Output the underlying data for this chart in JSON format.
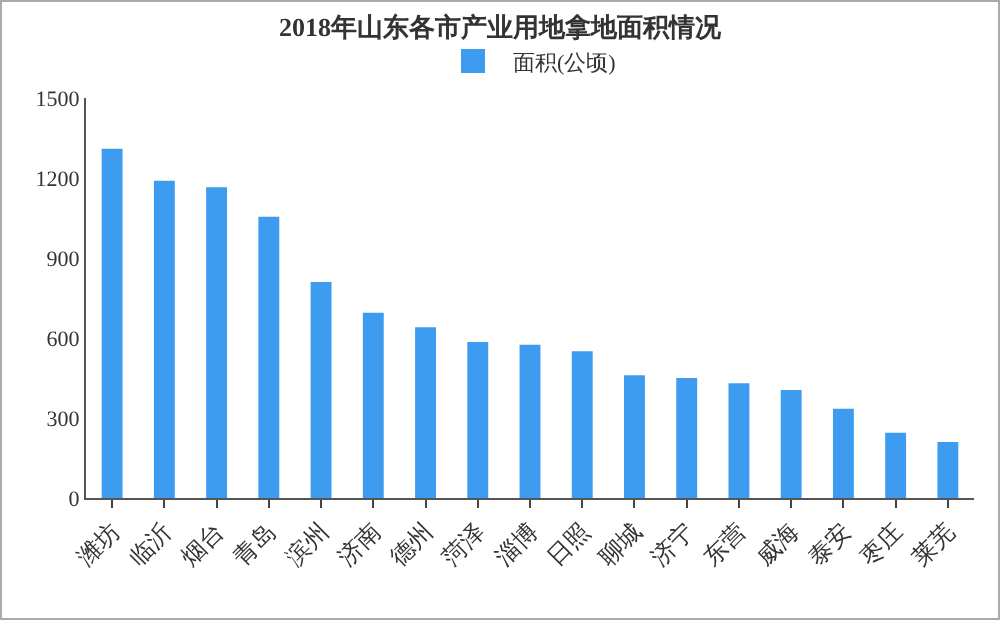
{
  "chart_data": {
    "type": "bar",
    "title": "2018年山东各市产业用地拿地面积情况",
    "categories": [
      "潍坊",
      "临沂",
      "烟台",
      "青岛",
      "滨州",
      "济南",
      "德州",
      "菏泽",
      "淄博",
      "日照",
      "聊城",
      "济宁",
      "东营",
      "威海",
      "泰安",
      "枣庄",
      "莱芜"
    ],
    "series": [
      {
        "name": "面积(公顷)",
        "color": "#3d9cf0",
        "values": [
          1310,
          1190,
          1165,
          1055,
          810,
          695,
          640,
          585,
          575,
          550,
          460,
          450,
          430,
          405,
          335,
          245,
          210
        ]
      }
    ],
    "ylim": [
      0,
      1500
    ],
    "yticks": [
      0,
      300,
      600,
      900,
      1200,
      1500
    ],
    "grid": false,
    "legend": "top"
  }
}
